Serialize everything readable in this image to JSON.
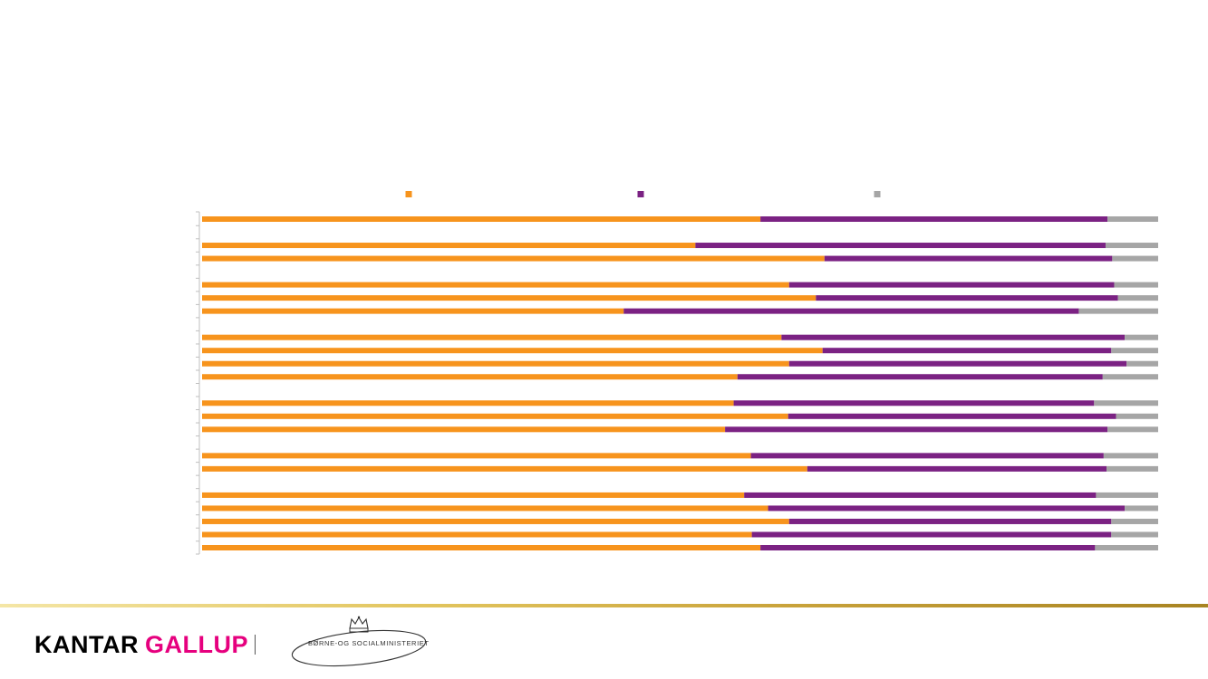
{
  "chart_data": {
    "type": "bar",
    "orientation": "horizontal",
    "stacked": true,
    "percent_stacked": true,
    "title": "",
    "xlabel": "",
    "ylabel": "",
    "xlim": [
      0,
      100
    ],
    "grid": false,
    "legend_position": "top",
    "group_sizes": [
      1,
      2,
      3,
      4,
      3,
      2,
      5
    ],
    "series": [
      {
        "name": "",
        "color": "#f7941d",
        "values": [
          58.4,
          51.6,
          65.1,
          61.4,
          64.2,
          44.1,
          60.6,
          64.9,
          61.4,
          56.0,
          55.6,
          61.3,
          54.7,
          57.4,
          63.3,
          56.7,
          59.2,
          61.4,
          57.5,
          58.4
        ]
      },
      {
        "name": "",
        "color": "#7b2283",
        "values": [
          36.3,
          42.9,
          30.1,
          34.0,
          31.6,
          47.6,
          35.9,
          30.2,
          35.3,
          38.2,
          37.7,
          34.3,
          40.0,
          36.9,
          31.3,
          36.8,
          37.3,
          33.7,
          37.6,
          35.0
        ]
      },
      {
        "name": "",
        "color": "#a6a6a6",
        "values": [
          5.3,
          5.5,
          4.8,
          4.6,
          4.2,
          8.3,
          3.5,
          4.9,
          3.3,
          5.8,
          6.7,
          4.4,
          5.3,
          5.7,
          5.4,
          6.5,
          3.5,
          4.9,
          4.9,
          6.6
        ]
      }
    ]
  },
  "footer": {
    "brand_word_1": "KANTAR",
    "brand_word_2": "GALLUP",
    "ministry_name": "BØRNE-OG SOCIALMINISTERIET"
  }
}
